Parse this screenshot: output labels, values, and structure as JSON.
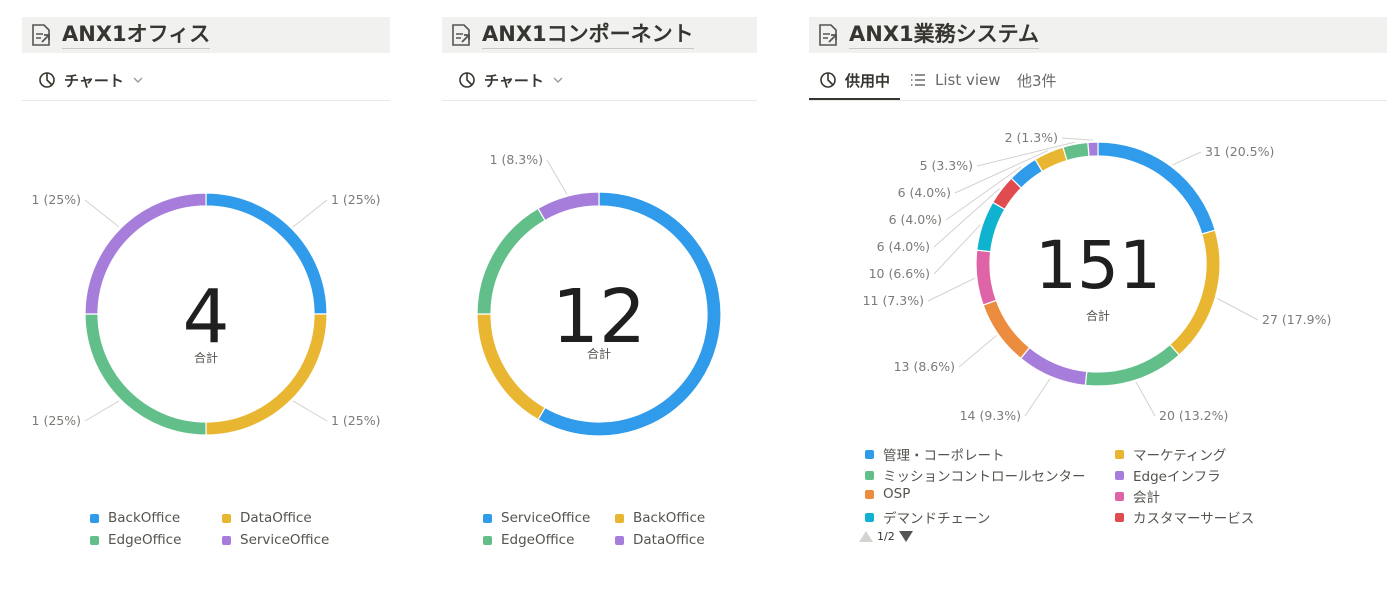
{
  "colors": {
    "blue": "#2f9bea",
    "yellow": "#e8b630",
    "green": "#62bf8a",
    "purple": "#a77ddb",
    "orange": "#ec8c3e",
    "pink": "#df64a7",
    "cyan": "#0fb2cf",
    "red": "#e04b4f"
  },
  "panels": [
    {
      "title": "ANX1オフィス",
      "tabs": [
        {
          "label": "チャート"
        }
      ],
      "chart_data": {
        "type": "pie",
        "total": "4",
        "total_label": "合計",
        "slices": [
          {
            "name": "BackOffice",
            "value": 1,
            "label": "1 (25%)",
            "color": "#2f9bea"
          },
          {
            "name": "DataOffice",
            "value": 1,
            "label": "1 (25%)",
            "color": "#e8b630"
          },
          {
            "name": "EdgeOffice",
            "value": 1,
            "label": "1 (25%)",
            "color": "#62bf8a"
          },
          {
            "name": "ServiceOffice",
            "value": 1,
            "label": "1 (25%)",
            "color": "#a77ddb"
          }
        ],
        "legend": [
          "BackOffice",
          "DataOffice",
          "EdgeOffice",
          "ServiceOffice"
        ]
      }
    },
    {
      "title": "ANX1コンポーネント",
      "tabs": [
        {
          "label": "チャート"
        }
      ],
      "chart_data": {
        "type": "pie",
        "total": "12",
        "total_label": "合計",
        "slices": [
          {
            "name": "ServiceOffice",
            "value": 7,
            "label": "",
            "color": "#2f9bea"
          },
          {
            "name": "BackOffice",
            "value": 2,
            "label": "",
            "color": "#e8b630"
          },
          {
            "name": "EdgeOffice",
            "value": 2,
            "label": "",
            "color": "#62bf8a"
          },
          {
            "name": "DataOffice",
            "value": 1,
            "label": "1 (8.3%)",
            "color": "#a77ddb"
          }
        ],
        "legend": [
          "ServiceOffice",
          "BackOffice",
          "EdgeOffice",
          "DataOffice"
        ]
      }
    },
    {
      "title": "ANX1業務システム",
      "tabs": [
        {
          "label": "供用中"
        },
        {
          "label": "List view"
        },
        {
          "label": "他3件"
        }
      ],
      "chart_data": {
        "type": "pie",
        "total": "151",
        "total_label": "合計",
        "slices": [
          {
            "name": "管理・コーポレート",
            "value": 31,
            "label": "31 (20.5%)",
            "color": "#2f9bea"
          },
          {
            "name": "マーケティング",
            "value": 27,
            "label": "27 (17.9%)",
            "color": "#e8b630"
          },
          {
            "name": "ミッションコントロールセンター",
            "value": 20,
            "label": "20 (13.2%)",
            "color": "#62bf8a"
          },
          {
            "name": "Edgeインフラ",
            "value": 14,
            "label": "14 (9.3%)",
            "color": "#a77ddb"
          },
          {
            "name": "OSP",
            "value": 13,
            "label": "13 (8.6%)",
            "color": "#ec8c3e"
          },
          {
            "name": "会計",
            "value": 11,
            "label": "11 (7.3%)",
            "color": "#df64a7"
          },
          {
            "name": "デマンドチェーン",
            "value": 10,
            "label": "10 (6.6%)",
            "color": "#0fb2cf"
          },
          {
            "name": "カスタマーサービス",
            "value": 6,
            "label": "6 (4.0%)",
            "color": "#e04b4f"
          },
          {
            "name": "",
            "value": 6,
            "label": "6 (4.0%)",
            "color": "#2f9bea"
          },
          {
            "name": "",
            "value": 6,
            "label": "6 (4.0%)",
            "color": "#e8b630"
          },
          {
            "name": "",
            "value": 5,
            "label": "5 (3.3%)",
            "color": "#62bf8a"
          },
          {
            "name": "",
            "value": 2,
            "label": "2 (1.3%)",
            "color": "#a77ddb"
          }
        ],
        "legend": [
          "管理・コーポレート",
          "マーケティング",
          "ミッションコントロールセンター",
          "Edgeインフラ",
          "OSP",
          "会計",
          "デマンドチェーン",
          "カスタマーサービス"
        ],
        "pager": "1/2"
      }
    }
  ]
}
